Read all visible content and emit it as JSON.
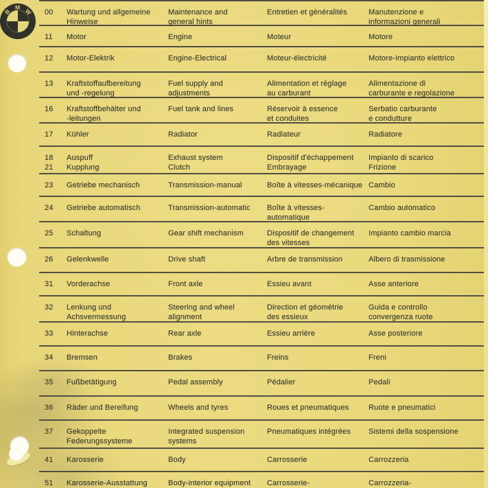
{
  "logo": {
    "letters": [
      "B",
      "M",
      "W"
    ]
  },
  "rows": [
    {
      "code": "00",
      "de": "Wartung und allgemeine\nHinweise",
      "en": "Maintenance and\ngeneral hints",
      "fr": "Entretien et généralités",
      "it": "Manutenzione e\ninformazioni generali"
    },
    {
      "code": "11",
      "de": "Motor",
      "en": "Engine",
      "fr": "Moteur",
      "it": "Motore"
    },
    {
      "code": "12",
      "de": "Motor-Elektrik",
      "en": "Engine-Electrical",
      "fr": "Moteur-électricité",
      "it": "Motore-Impianto elettrico"
    },
    {
      "code": "13",
      "de": "Kraftstoffaufbereitung\nund -regelung",
      "en": "Fuel supply and\nadjustments",
      "fr": "Alimentation et réglage\nau carburant",
      "it": "Alimentazione di\ncarburante e regolazione"
    },
    {
      "code": "16",
      "de": "Kraftstoffbehälter und\n-leitungen",
      "en": "Fuel tank and lines",
      "fr": "Réservoir à essence\net conduites",
      "it": "Serbatio carburante\ne condutture"
    },
    {
      "code": "17",
      "de": "Kühler",
      "en": "Radiator",
      "fr": "Radiateur",
      "it": "Radiatore"
    },
    {
      "code": "18\n21",
      "de": "Auspuff\nKupplung",
      "en": "Exhaust system\nClutch",
      "fr": "Dispositif d'échappement\nEmbrayage",
      "it": "Impianto di scarico\nFrizione"
    },
    {
      "code": "23",
      "de": "Getriebe mechanisch",
      "en": "Transmission-manual",
      "fr": "Boîte à vitesses-mécanique",
      "it": "Cambio"
    },
    {
      "code": "24",
      "de": "Getriebe automatisch",
      "en": "Transmission-automatic",
      "fr": "Boîte à vitesses-\nautomatique",
      "it": "Cambio automatico"
    },
    {
      "code": "25",
      "de": "Schaltung",
      "en": "Gear shift mechanism",
      "fr": "Dispositif de changement\ndes vitesses",
      "it": "Impianto cambio marcia"
    },
    {
      "code": "26",
      "de": "Gelenkwelle",
      "en": "Drive shaft",
      "fr": "Arbre de transmission",
      "it": "Albero di trasmissione"
    },
    {
      "code": "31",
      "de": "Vorderachse",
      "en": "Front axle",
      "fr": "Essieu avant",
      "it": "Asse anteriore"
    },
    {
      "code": "32",
      "de": "Lenkung und\nAchsvermessung",
      "en": "Steering and wheel\nalignment",
      "fr": "Direction et géométrie\ndes essieux",
      "it": "Guida e controllo\nconvergenza ruote"
    },
    {
      "code": "33",
      "de": "Hinterachse",
      "en": "Rear axle",
      "fr": "Essieu arrière",
      "it": "Asse posteriore"
    },
    {
      "code": "34",
      "de": "Bremsen",
      "en": "Brakes",
      "fr": "Freins",
      "it": "Freni"
    },
    {
      "code": "35",
      "de": "Fußbetätigung",
      "en": "Pedal assembly",
      "fr": "Pédalier",
      "it": "Pedali"
    },
    {
      "code": "36",
      "de": "Räder und Bereifung",
      "en": "Wheels and tyres",
      "fr": "Roues et pneumatiques",
      "it": "Ruote e pneumatici"
    },
    {
      "code": "37",
      "de": "Gekoppelte\nFederungssysteme",
      "en": "Integrated suspension\nsystems",
      "fr": "Pneumatiques intégrées",
      "it": "Sistemi della sospensione"
    },
    {
      "code": "41",
      "de": "Karosserie",
      "en": "Body",
      "fr": "Carrosserie",
      "it": "Carrozzeria"
    },
    {
      "code": "51",
      "de": "Karosserie-Ausstattung",
      "en": "Body-interior equipment",
      "fr": "Carrosserie-",
      "it": "Carrozzeria-"
    }
  ],
  "colors": {
    "paper": "#e8d77a",
    "line": "#514f42",
    "text": "#3a392e",
    "logo_dark": "#31312a",
    "logo_light": "#e6d77f"
  }
}
